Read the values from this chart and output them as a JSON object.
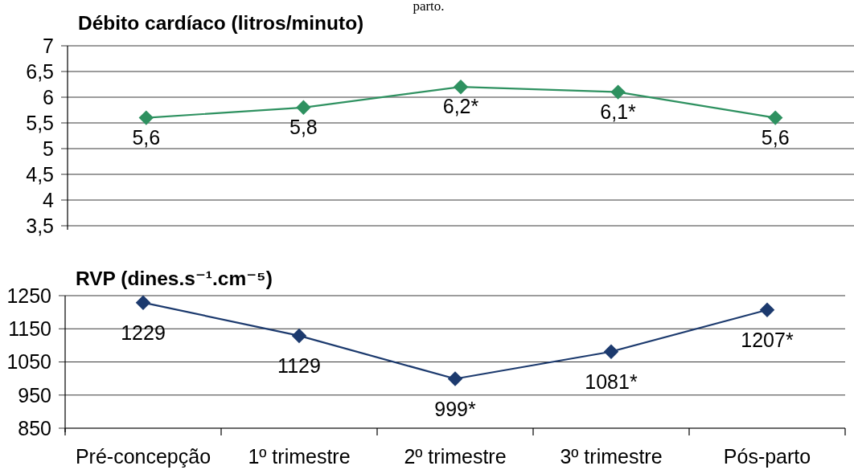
{
  "chart_data": [
    {
      "type": "line",
      "title": "Débito cardíaco (litros/minuto)",
      "categories": [
        null,
        null,
        null,
        null,
        null
      ],
      "values": [
        5.6,
        5.8,
        6.2,
        6.1,
        5.6
      ],
      "value_labels": [
        "5,6",
        "5,8",
        "6,2*",
        "6,1*",
        "5,6"
      ],
      "color": "#2e9160",
      "ylim": [
        3.5,
        7
      ],
      "yticks": [
        {
          "value": 3.5,
          "label": "3,5"
        },
        4,
        {
          "value": 4.5,
          "label": "4,5"
        },
        5,
        {
          "value": 5.5,
          "label": "5,5"
        },
        6,
        {
          "value": 6.5,
          "label": "6,5"
        },
        7
      ],
      "grid": "y",
      "marker": "diamond",
      "line_style": "solid",
      "tick_labels": "y",
      "annotations": [
        "parto."
      ]
    },
    {
      "type": "line",
      "title": "RVP (dines.s⁻¹.cm⁻⁵)",
      "categories": [
        "Pré-concepção",
        "1º trimestre",
        "2º trimestre",
        "3º trimestre",
        "Pós-parto"
      ],
      "values": [
        1229,
        1129,
        999,
        1081,
        1207
      ],
      "value_labels": [
        "1229",
        "1129",
        "999*",
        "1081*",
        "1207*"
      ],
      "color": "#1c3a6e",
      "ylim": [
        850,
        1250
      ],
      "yticks": [
        850,
        950,
        1050,
        1150,
        1250
      ],
      "grid": "y",
      "marker": "diamond",
      "line_style": "solid"
    }
  ]
}
